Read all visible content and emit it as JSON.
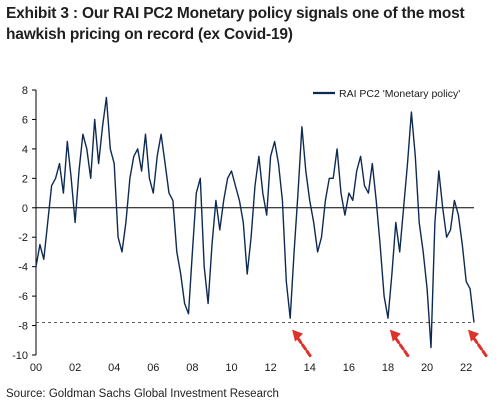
{
  "title": "Exhibit 3 : Our RAI PC2 Monetary policy signals one of the most hawkish pricing on record (ex Covid-19)",
  "source": "Source: Goldman Sachs Global Investment Research",
  "colors": {
    "series": "#0e2a52",
    "arrow": "#e0322c",
    "axis": "#000000",
    "reference": "#444444"
  },
  "chart_data": {
    "type": "line",
    "title": "",
    "xlabel": "",
    "ylabel": "",
    "ylim": [
      -10,
      8
    ],
    "xlim": [
      2000,
      2022.4
    ],
    "yticks": [
      -10,
      -8,
      -6,
      -4,
      -2,
      0,
      2,
      4,
      6,
      8
    ],
    "xticks": [
      {
        "x": 2000,
        "label": "00"
      },
      {
        "x": 2002,
        "label": "02"
      },
      {
        "x": 2004,
        "label": "04"
      },
      {
        "x": 2006,
        "label": "06"
      },
      {
        "x": 2008,
        "label": "08"
      },
      {
        "x": 2010,
        "label": "10"
      },
      {
        "x": 2012,
        "label": "12"
      },
      {
        "x": 2014,
        "label": "14"
      },
      {
        "x": 2016,
        "label": "16"
      },
      {
        "x": 2018,
        "label": "18"
      },
      {
        "x": 2020,
        "label": "20"
      },
      {
        "x": 2022,
        "label": "22"
      }
    ],
    "grid": false,
    "legend": "top-right",
    "reference_line": {
      "y": -7.8,
      "style": "dashed"
    },
    "arrows_at_x": [
      2013.3,
      2018.3,
      2022.3
    ],
    "series": [
      {
        "name": "RAI PC2 'Monetary policy'",
        "x": [
          2000.0,
          2000.2,
          2000.4,
          2000.6,
          2000.8,
          2001.0,
          2001.2,
          2001.4,
          2001.6,
          2001.8,
          2002.0,
          2002.2,
          2002.4,
          2002.6,
          2002.8,
          2003.0,
          2003.2,
          2003.4,
          2003.6,
          2003.8,
          2004.0,
          2004.2,
          2004.4,
          2004.6,
          2004.8,
          2005.0,
          2005.2,
          2005.4,
          2005.6,
          2005.8,
          2006.0,
          2006.2,
          2006.4,
          2006.6,
          2006.8,
          2007.0,
          2007.2,
          2007.4,
          2007.6,
          2007.8,
          2008.0,
          2008.2,
          2008.4,
          2008.6,
          2008.8,
          2009.0,
          2009.2,
          2009.4,
          2009.6,
          2009.8,
          2010.0,
          2010.2,
          2010.4,
          2010.6,
          2010.8,
          2011.0,
          2011.2,
          2011.4,
          2011.6,
          2011.8,
          2012.0,
          2012.2,
          2012.4,
          2012.6,
          2012.8,
          2013.0,
          2013.2,
          2013.4,
          2013.6,
          2013.8,
          2014.0,
          2014.2,
          2014.4,
          2014.6,
          2014.8,
          2015.0,
          2015.2,
          2015.4,
          2015.6,
          2015.8,
          2016.0,
          2016.2,
          2016.4,
          2016.6,
          2016.8,
          2017.0,
          2017.2,
          2017.4,
          2017.6,
          2017.8,
          2018.0,
          2018.2,
          2018.4,
          2018.6,
          2018.8,
          2019.0,
          2019.2,
          2019.4,
          2019.6,
          2019.8,
          2020.0,
          2020.2,
          2020.4,
          2020.6,
          2020.8,
          2021.0,
          2021.2,
          2021.4,
          2021.6,
          2021.8,
          2022.0,
          2022.2,
          2022.4
        ],
        "y": [
          -4.0,
          -2.5,
          -3.5,
          -1.0,
          1.5,
          2.0,
          3.0,
          1.0,
          4.5,
          2.0,
          -1.0,
          2.5,
          5.0,
          4.0,
          2.0,
          6.0,
          3.0,
          5.5,
          7.5,
          4.0,
          3.0,
          -2.0,
          -3.0,
          -1.0,
          2.0,
          3.5,
          4.0,
          2.5,
          5.0,
          2.0,
          1.0,
          3.5,
          5.0,
          3.0,
          1.0,
          0.5,
          -3.0,
          -4.5,
          -6.5,
          -7.2,
          -3.0,
          1.0,
          2.0,
          -4.0,
          -6.5,
          -2.5,
          0.5,
          -1.5,
          0.5,
          2.0,
          2.5,
          1.5,
          0.5,
          -1.0,
          -4.5,
          -2.0,
          1.5,
          3.5,
          1.0,
          -0.5,
          3.5,
          4.5,
          3.0,
          0.5,
          -5.0,
          -7.5,
          -3.0,
          1.0,
          5.5,
          2.5,
          0.5,
          -1.0,
          -3.0,
          -2.0,
          0.5,
          2.0,
          2.0,
          4.0,
          1.0,
          -0.5,
          1.0,
          0.5,
          2.5,
          3.5,
          1.5,
          1.0,
          3.0,
          0.5,
          -2.5,
          -6.0,
          -7.5,
          -4.5,
          -1.0,
          -3.0,
          0.0,
          3.0,
          6.5,
          3.5,
          -1.0,
          -3.0,
          -5.5,
          -9.5,
          -1.0,
          2.5,
          0.0,
          -2.0,
          -1.5,
          0.5,
          -0.5,
          -2.5,
          -5.0,
          -5.5,
          -7.8
        ]
      }
    ]
  }
}
